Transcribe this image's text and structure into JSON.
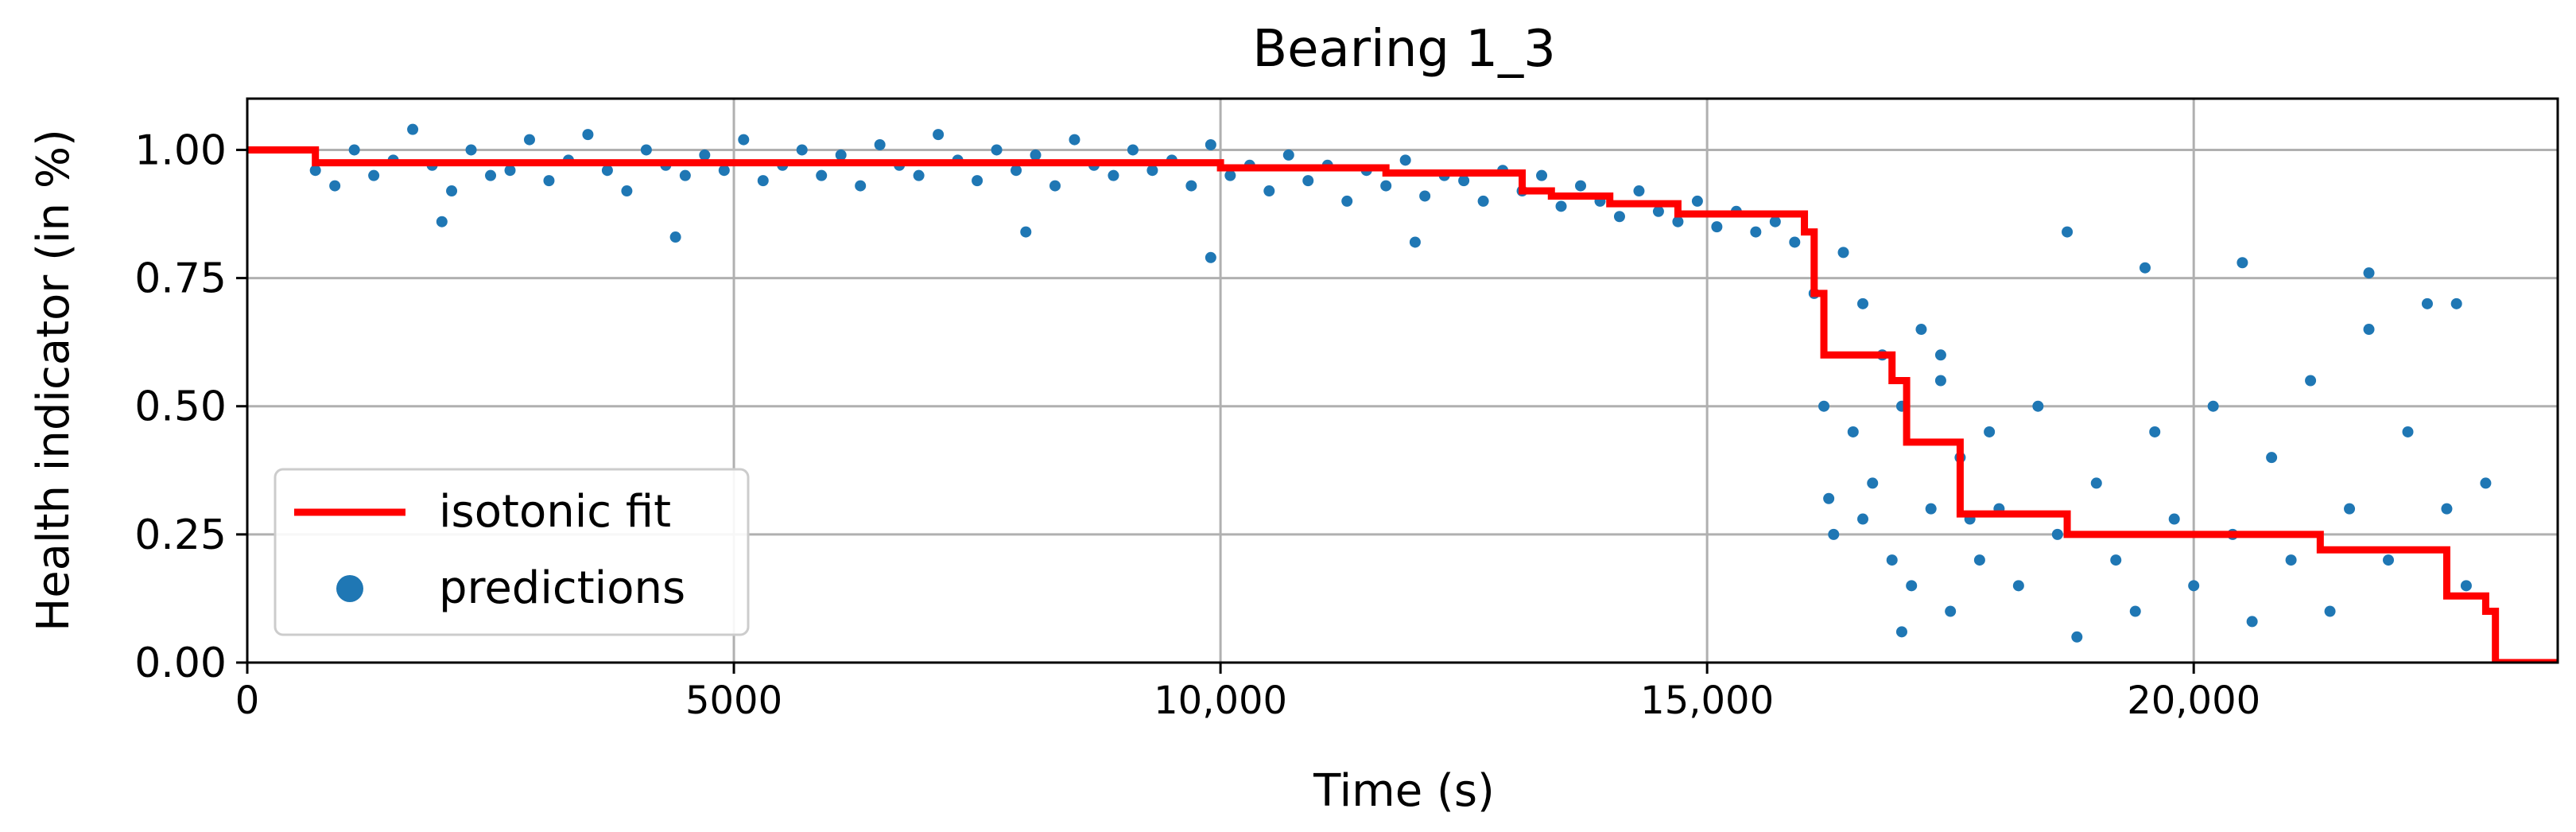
{
  "chart_data": {
    "type": "scatter",
    "title": "Bearing 1_3",
    "xlabel": "Time (s)",
    "ylabel": "Health indicator (in %)",
    "xlim": [
      0,
      23740
    ],
    "ylim": [
      0,
      1.1
    ],
    "x_ticks": [
      0,
      5000,
      10000,
      15000,
      20000
    ],
    "x_tick_labels": [
      "0",
      "5000",
      "10,000",
      "15,000",
      "20,000"
    ],
    "y_ticks": [
      0,
      0.25,
      0.5,
      0.75,
      1.0
    ],
    "y_tick_labels": [
      "0.00",
      "0.25",
      "0.50",
      "0.75",
      "1.00"
    ],
    "grid": true,
    "legend_position": "lower-left",
    "legend": [
      {
        "label": "isotonic fit",
        "type": "line",
        "color": "#ff0000"
      },
      {
        "label": "predictions",
        "type": "marker",
        "color": "#1f77b4"
      }
    ],
    "series": [
      {
        "name": "isotonic fit",
        "type": "step-line",
        "color": "#ff0000",
        "x": [
          0,
          700,
          700,
          10000,
          10000,
          11700,
          11700,
          13100,
          13100,
          13400,
          13400,
          14000,
          14000,
          14700,
          14700,
          16000,
          16000,
          16100,
          16100,
          16200,
          16200,
          16300,
          16300,
          16900,
          16900,
          17050,
          17050,
          17600,
          17600,
          18700,
          18700,
          21300,
          21300,
          22600,
          22600,
          23000,
          23000,
          23100,
          23100,
          23740
        ],
        "y": [
          1.0,
          1.0,
          0.975,
          0.975,
          0.965,
          0.965,
          0.955,
          0.955,
          0.92,
          0.92,
          0.91,
          0.91,
          0.895,
          0.895,
          0.875,
          0.875,
          0.84,
          0.84,
          0.72,
          0.72,
          0.6,
          0.6,
          0.6,
          0.6,
          0.55,
          0.55,
          0.43,
          0.43,
          0.29,
          0.29,
          0.25,
          0.25,
          0.22,
          0.22,
          0.13,
          0.13,
          0.1,
          0.1,
          0.0,
          0.0
        ]
      },
      {
        "name": "predictions",
        "type": "scatter",
        "color": "#1f77b4",
        "x": [
          700,
          900,
          1100,
          1300,
          1500,
          1700,
          1900,
          2100,
          2300,
          2500,
          2700,
          2900,
          3100,
          3300,
          3500,
          3700,
          3900,
          4100,
          4300,
          4500,
          4700,
          4900,
          5100,
          5300,
          5500,
          5700,
          5900,
          6100,
          6300,
          6500,
          6700,
          6900,
          7100,
          7300,
          7500,
          7700,
          7900,
          8100,
          8300,
          8500,
          8700,
          8900,
          9100,
          9300,
          9500,
          9700,
          9900,
          10100,
          10300,
          10500,
          10700,
          10900,
          11100,
          11300,
          11500,
          11700,
          11900,
          12100,
          12300,
          12500,
          12700,
          12900,
          13100,
          13300,
          13500,
          13700,
          13900,
          14100,
          14300,
          14500,
          14700,
          14900,
          15100,
          15300,
          15500,
          15700,
          15900,
          16100,
          16200,
          16300,
          16400,
          16500,
          16600,
          16700,
          16800,
          16900,
          17000,
          17100,
          17200,
          17300,
          17400,
          17500,
          17600,
          17700,
          17800,
          17900,
          18000,
          18200,
          18400,
          18600,
          18800,
          19000,
          19200,
          19400,
          19600,
          19800,
          20000,
          20200,
          20400,
          20600,
          20800,
          21000,
          21200,
          21400,
          21600,
          21800,
          22000,
          22200,
          22400,
          22600,
          22800,
          23000,
          2000,
          4400,
          8000,
          9900,
          12000,
          16250,
          16600,
          17000,
          17400,
          18700,
          19500,
          20500,
          21800,
          22700
        ],
        "y": [
          0.96,
          0.93,
          1.0,
          0.95,
          0.98,
          1.04,
          0.97,
          0.92,
          1.0,
          0.95,
          0.96,
          1.02,
          0.94,
          0.98,
          1.03,
          0.96,
          0.92,
          1.0,
          0.97,
          0.95,
          0.99,
          0.96,
          1.02,
          0.94,
          0.97,
          1.0,
          0.95,
          0.99,
          0.93,
          1.01,
          0.97,
          0.95,
          1.03,
          0.98,
          0.94,
          1.0,
          0.96,
          0.99,
          0.93,
          1.02,
          0.97,
          0.95,
          1.0,
          0.96,
          0.98,
          0.93,
          1.01,
          0.95,
          0.97,
          0.92,
          0.99,
          0.94,
          0.97,
          0.9,
          0.96,
          0.93,
          0.98,
          0.91,
          0.95,
          0.94,
          0.9,
          0.96,
          0.92,
          0.95,
          0.89,
          0.93,
          0.9,
          0.87,
          0.92,
          0.88,
          0.86,
          0.9,
          0.85,
          0.88,
          0.84,
          0.86,
          0.82,
          0.72,
          0.5,
          0.25,
          0.8,
          0.45,
          0.7,
          0.35,
          0.6,
          0.2,
          0.5,
          0.15,
          0.65,
          0.3,
          0.55,
          0.1,
          0.4,
          0.28,
          0.2,
          0.45,
          0.3,
          0.15,
          0.5,
          0.25,
          0.05,
          0.35,
          0.2,
          0.1,
          0.45,
          0.28,
          0.15,
          0.5,
          0.25,
          0.08,
          0.4,
          0.2,
          0.55,
          0.1,
          0.3,
          0.65,
          0.2,
          0.45,
          0.7,
          0.3,
          0.15,
          0.35,
          0.86,
          0.83,
          0.84,
          0.79,
          0.82,
          0.32,
          0.28,
          0.06,
          0.6,
          0.84,
          0.77,
          0.78,
          0.76,
          0.7
        ]
      }
    ]
  }
}
